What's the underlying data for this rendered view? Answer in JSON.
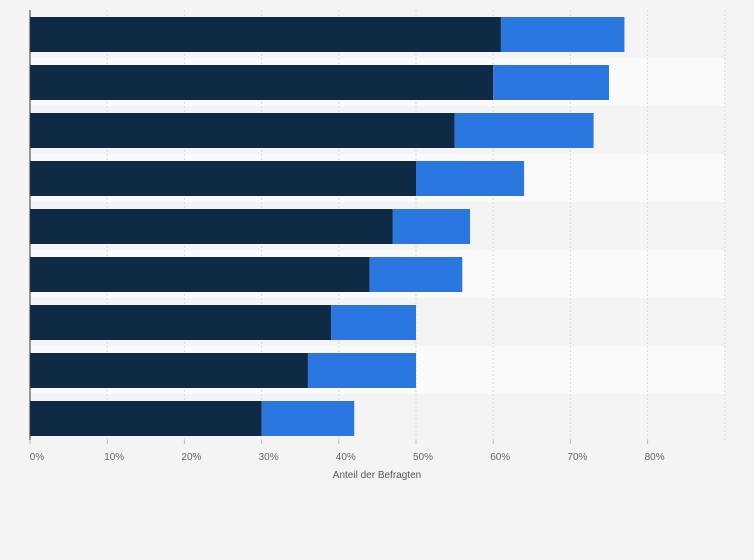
{
  "chart_data": {
    "type": "bar",
    "orientation": "horizontal",
    "stacked": true,
    "categories": [
      "",
      "",
      "",
      "",
      "",
      "",
      "",
      "",
      ""
    ],
    "series": [
      {
        "values": [
          61,
          60,
          55,
          50,
          47,
          44,
          39,
          36,
          30
        ],
        "color": "#0f2a44"
      },
      {
        "values": [
          16,
          15,
          18,
          14,
          10,
          12,
          11,
          14,
          12
        ],
        "color": "#2a77df"
      }
    ],
    "xlabel": "Anteil der Befragten",
    "ylabel": "",
    "xlim": [
      0,
      90
    ],
    "xticks": [
      0,
      10,
      20,
      30,
      40,
      50,
      60,
      70,
      80
    ],
    "tick_format": "{v}%",
    "grid": true,
    "legend": "none"
  }
}
